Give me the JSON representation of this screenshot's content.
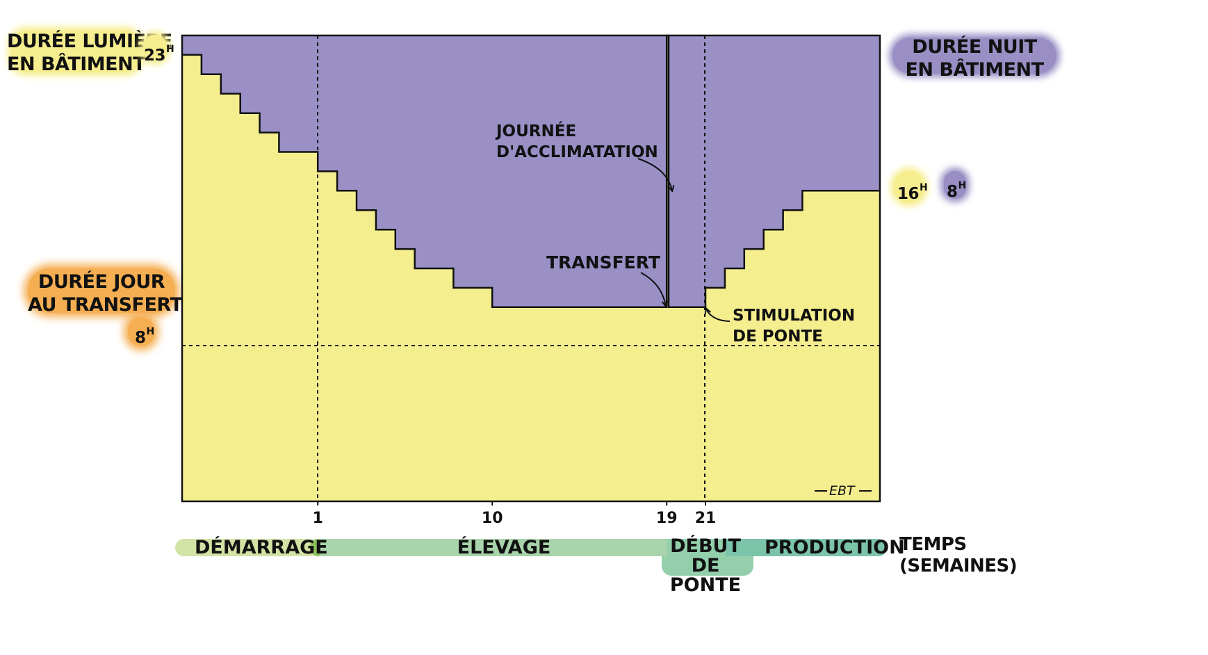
{
  "chart_data": {
    "type": "area",
    "title": "",
    "xlabel": "TEMPS (SEMAINES)",
    "ylabel": "",
    "x_ticks": [
      "1",
      "10",
      "19",
      "21"
    ],
    "x_tick_values": [
      1,
      10,
      19,
      21
    ],
    "xlim": [
      -6,
      30
    ],
    "ylim": [
      0,
      24
    ],
    "grid": false,
    "series": [
      {
        "name": "DURÉE LUMIÈRE EN BÂTIMENT",
        "color": "#f5ee8f",
        "step_x": [
          -6,
          -5,
          -4,
          -3,
          -2,
          -1,
          1,
          2,
          3,
          4,
          5,
          6,
          8,
          10,
          19,
          19.1,
          20,
          21,
          22,
          23,
          24,
          25,
          26,
          30
        ],
        "light_hours": [
          23,
          22,
          21,
          20,
          19,
          18,
          17,
          16,
          15,
          14,
          13,
          12,
          11,
          10,
          24,
          10,
          10,
          11,
          12,
          13,
          14,
          15,
          16,
          16
        ]
      },
      {
        "name": "DURÉE NUIT EN BÂTIMENT",
        "color": "#9a90c6"
      }
    ],
    "reference_line_y": 8,
    "phases": [
      {
        "label": "DÉMARRAGE",
        "color": "#d3e2a5"
      },
      {
        "label": "ÉLEVAGE",
        "color": "#a9d3ab"
      },
      {
        "label": "DÉBUT DE PONTE",
        "color": "#8ecfaa"
      },
      {
        "label": "PRODUCTION",
        "color": "#7cc4a9"
      }
    ]
  },
  "labels": {
    "light_building": [
      "DURÉE LUMIÈRE",
      "EN BÂTIMENT"
    ],
    "light_start_hours": "23",
    "night_building": [
      "DURÉE NUIT",
      "EN BÂTIMENT"
    ],
    "end_light_hours": "16",
    "end_night_hours": "8",
    "day_transfer": [
      "DURÉE JOUR",
      "AU TRANSFERT"
    ],
    "day_transfer_hours": "8",
    "hour_unit": "H",
    "acclimatation": [
      "JOURNÉE",
      "D'ACCLIMATATION"
    ],
    "transfert": "TRANSFERT",
    "stimulation": [
      "STIMULATION",
      "DE PONTE"
    ],
    "time_axis": [
      "TEMPS",
      "(SEMAINES)"
    ],
    "signature": "EBT"
  },
  "colors": {
    "light": "#f5ee8f",
    "night": "#9a90c6",
    "orange": "#f5ae52",
    "line": "#111111"
  }
}
